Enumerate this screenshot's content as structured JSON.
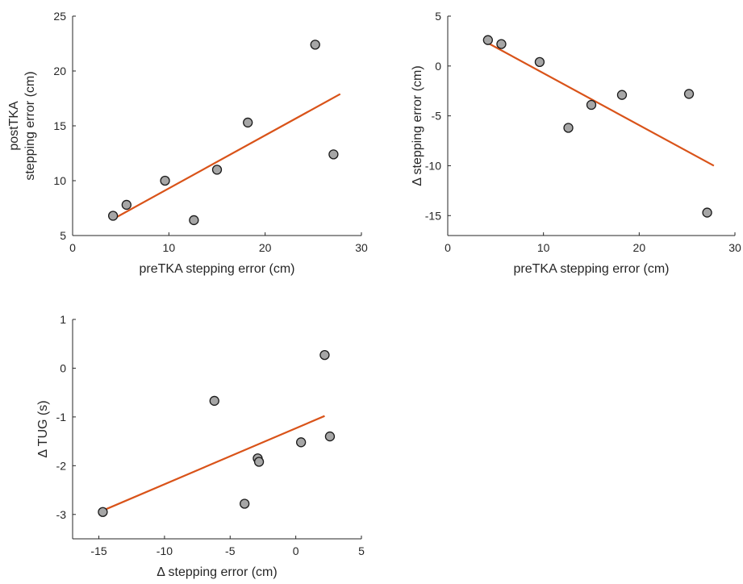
{
  "chart_data": [
    {
      "type": "scatter",
      "xlabel": "preTKA stepping error (cm)",
      "ylabel": [
        "postTKA",
        "stepping error (cm)"
      ],
      "xlim": [
        0,
        30
      ],
      "ylim": [
        5,
        25
      ],
      "xticks": [
        0,
        10,
        20,
        30
      ],
      "yticks": [
        5,
        10,
        15,
        20,
        25
      ],
      "xtick_labels": [
        "0",
        "10",
        "20",
        "30"
      ],
      "ytick_labels": [
        "5",
        "10",
        "15",
        "20",
        "25"
      ],
      "points": [
        {
          "x": 4.2,
          "y": 6.8
        },
        {
          "x": 5.6,
          "y": 7.8
        },
        {
          "x": 9.6,
          "y": 10.0
        },
        {
          "x": 12.6,
          "y": 6.4
        },
        {
          "x": 15.0,
          "y": 11.0
        },
        {
          "x": 18.2,
          "y": 15.3
        },
        {
          "x": 25.2,
          "y": 22.4
        },
        {
          "x": 27.1,
          "y": 12.4
        }
      ],
      "fit": {
        "x": [
          4.2,
          27.8
        ],
        "y": [
          6.5,
          17.9
        ]
      },
      "grid": false
    },
    {
      "type": "scatter",
      "xlabel": "preTKA stepping error (cm)",
      "ylabel": [
        "Δ stepping error (cm)"
      ],
      "xlim": [
        0,
        30
      ],
      "ylim": [
        -17,
        5
      ],
      "xticks": [
        0,
        10,
        20,
        30
      ],
      "yticks": [
        -15,
        -10,
        -5,
        0,
        5
      ],
      "xtick_labels": [
        "0",
        "10",
        "20",
        "30"
      ],
      "ytick_labels": [
        "-15",
        "-10",
        "-5",
        "0",
        "5"
      ],
      "points": [
        {
          "x": 4.2,
          "y": 2.6
        },
        {
          "x": 5.6,
          "y": 2.2
        },
        {
          "x": 9.6,
          "y": 0.4
        },
        {
          "x": 12.6,
          "y": -6.2
        },
        {
          "x": 15.0,
          "y": -3.9
        },
        {
          "x": 18.2,
          "y": -2.9
        },
        {
          "x": 25.2,
          "y": -2.8
        },
        {
          "x": 27.1,
          "y": -14.7
        }
      ],
      "fit": {
        "x": [
          4.2,
          27.8
        ],
        "y": [
          2.3,
          -10.0
        ]
      },
      "grid": false
    },
    {
      "type": "scatter",
      "xlabel": "Δ stepping error (cm)",
      "ylabel": [
        "Δ TUG (s)"
      ],
      "xlim": [
        -17,
        5
      ],
      "ylim": [
        -3.5,
        1
      ],
      "xticks": [
        -15,
        -10,
        -5,
        0,
        5
      ],
      "yticks": [
        -3,
        -2,
        -1,
        0,
        1
      ],
      "xtick_labels": [
        "-15",
        "-10",
        "-5",
        "0",
        "5"
      ],
      "ytick_labels": [
        "-3",
        "-2",
        "-1",
        "0",
        "1"
      ],
      "points": [
        {
          "x": -14.7,
          "y": -2.95
        },
        {
          "x": -6.2,
          "y": -0.67
        },
        {
          "x": -3.9,
          "y": -2.78
        },
        {
          "x": -2.9,
          "y": -1.85
        },
        {
          "x": -2.8,
          "y": -1.92
        },
        {
          "x": 0.4,
          "y": -1.52
        },
        {
          "x": 2.2,
          "y": 0.27
        },
        {
          "x": 2.6,
          "y": -1.4
        }
      ],
      "fit": {
        "x": [
          -14.7,
          2.2
        ],
        "y": [
          -2.92,
          -0.98
        ]
      },
      "grid": false
    }
  ]
}
